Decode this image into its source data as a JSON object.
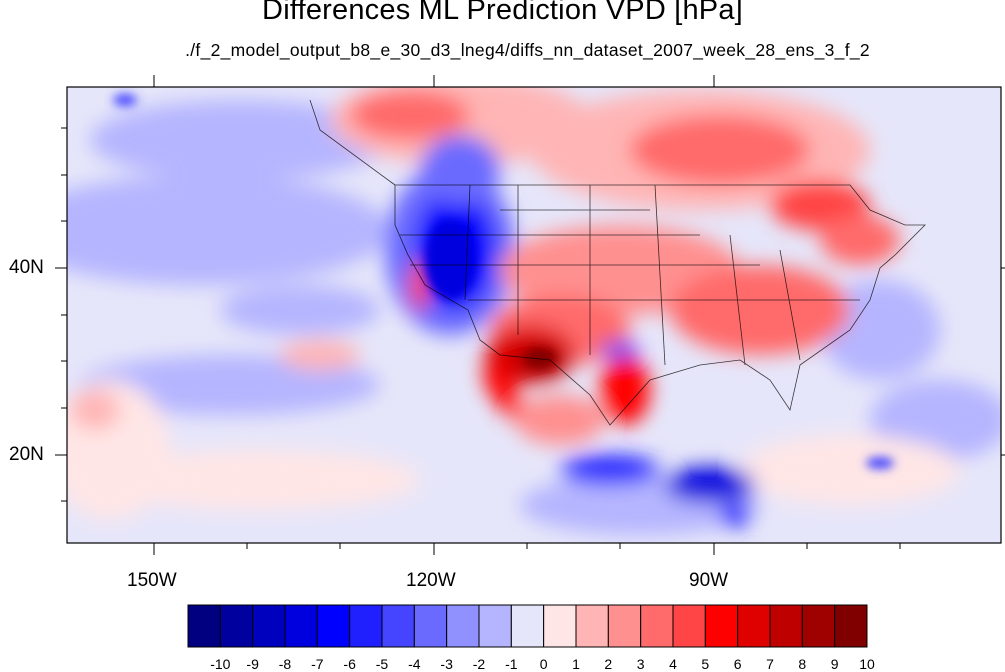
{
  "title": "Differences ML Prediction VPD [hPa]",
  "subtitle": "./f_2_model_output_b8_e_30_d3_lneg4/diffs_nn_dataset_2007_week_28_ens_3_f_2",
  "map": {
    "lon_range": [
      -160,
      -60
    ],
    "lat_range": [
      10,
      58
    ],
    "lon_ticks": [
      "150W",
      "120W",
      "90W"
    ],
    "lat_ticks": [
      "40N",
      "20N"
    ]
  },
  "colorbar": {
    "labels": [
      "-10",
      "-9",
      "-8",
      "-7",
      "-6",
      "-5",
      "-4",
      "-3",
      "-2",
      "-1",
      "0",
      "1",
      "2",
      "3",
      "4",
      "5",
      "6",
      "7",
      "8",
      "9",
      "10"
    ],
    "colors": [
      "#000080",
      "#00009f",
      "#0000bf",
      "#0000df",
      "#0000ff",
      "#2020ff",
      "#4545ff",
      "#6a6aff",
      "#9090ff",
      "#b5b5ff",
      "#e6e6fa",
      "#ffe6e6",
      "#ffb5b5",
      "#ff9090",
      "#ff6a6a",
      "#ff4545",
      "#ff0000",
      "#df0000",
      "#bf0000",
      "#9f0000",
      "#800000"
    ]
  }
}
